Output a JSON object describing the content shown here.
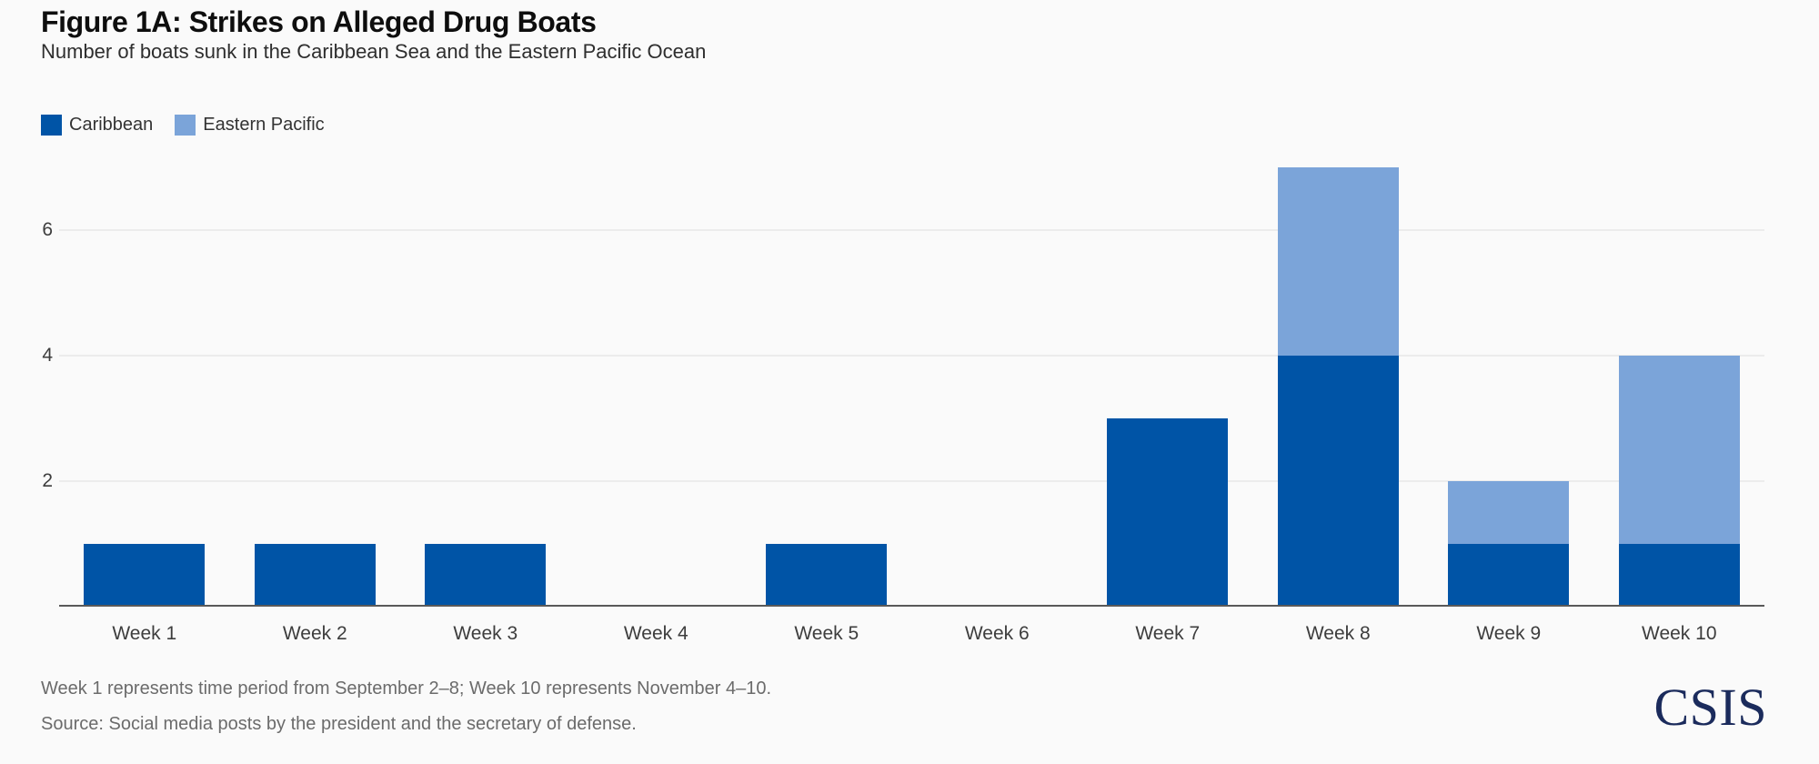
{
  "header": {
    "title": "Figure 1A: Strikes on Alleged Drug Boats",
    "subtitle": "Number of boats sunk in the Caribbean Sea and the Eastern Pacific Ocean"
  },
  "chart_data": {
    "type": "bar",
    "stacked": true,
    "title": "Figure 1A: Strikes on Alleged Drug Boats",
    "subtitle": "Number of boats sunk in the Caribbean Sea and the Eastern Pacific Ocean",
    "xlabel": "",
    "ylabel": "",
    "categories": [
      "Week 1",
      "Week 2",
      "Week 3",
      "Week 4",
      "Week 5",
      "Week 6",
      "Week 7",
      "Week 8",
      "Week 9",
      "Week 10"
    ],
    "series": [
      {
        "name": "Caribbean",
        "color": "#0054A6",
        "values": [
          1,
          1,
          1,
          0,
          1,
          0,
          3,
          4,
          1,
          1
        ]
      },
      {
        "name": "Eastern Pacific",
        "color": "#7BA4D9",
        "values": [
          0,
          0,
          0,
          0,
          0,
          0,
          0,
          3,
          1,
          3
        ]
      }
    ],
    "totals": [
      1,
      1,
      1,
      0,
      1,
      0,
      3,
      7,
      2,
      4
    ],
    "yticks": [
      2,
      4,
      6
    ],
    "ylim": [
      0,
      7.2
    ],
    "grid": "horizontal",
    "legend_position": "top-left"
  },
  "colors": {
    "background": "#FAFAFA",
    "gridline": "#ECECEC",
    "axis_line": "#595959",
    "caribbean": "#0054A6",
    "eastern_pacific": "#7BA4D9",
    "csis_navy": "#1B2B5C"
  },
  "footnotes": {
    "note": "Week 1 represents time period from September 2–8; Week 10 represents November 4–10.",
    "source": "Source: Social media posts by the president and the secretary of defense."
  },
  "logo": {
    "text": "CSIS"
  }
}
